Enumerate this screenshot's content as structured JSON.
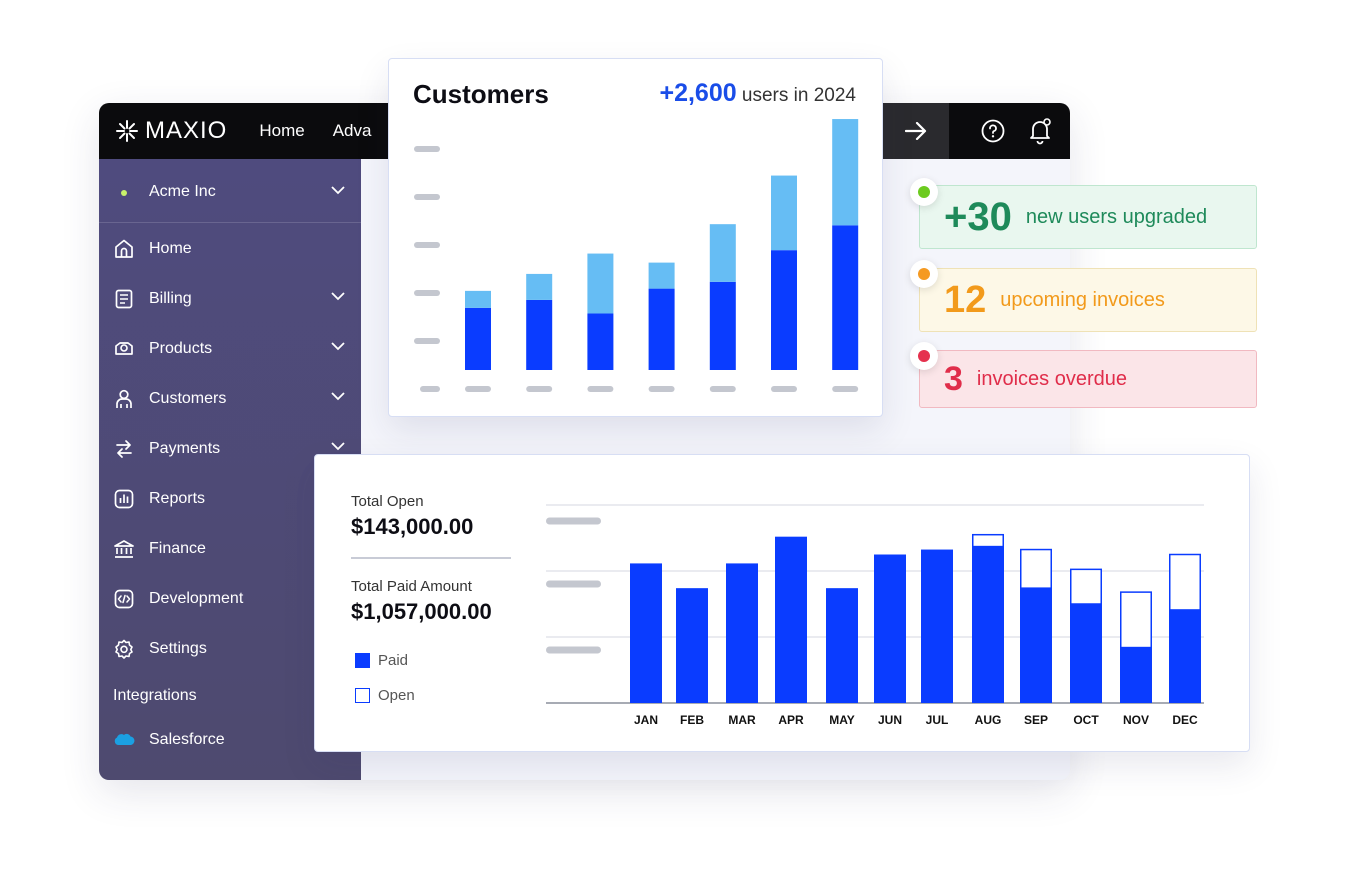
{
  "topbar": {
    "logo_text": "MAXIO",
    "nav": [
      "Home",
      "Adva"
    ],
    "icons": [
      "arrow-right-icon",
      "help-icon",
      "bell-icon"
    ]
  },
  "sidebar": {
    "org": "Acme Inc",
    "items": [
      {
        "label": "Home",
        "icon": "home-icon",
        "has_chevron": false
      },
      {
        "label": "Billing",
        "icon": "billing-icon",
        "has_chevron": true
      },
      {
        "label": "Products",
        "icon": "products-icon",
        "has_chevron": true
      },
      {
        "label": "Customers",
        "icon": "customers-icon",
        "has_chevron": true
      },
      {
        "label": "Payments",
        "icon": "payments-icon",
        "has_chevron": true
      },
      {
        "label": "Reports",
        "icon": "reports-icon",
        "has_chevron": false
      },
      {
        "label": "Finance",
        "icon": "finance-icon",
        "has_chevron": false
      },
      {
        "label": "Development",
        "icon": "development-icon",
        "has_chevron": false
      },
      {
        "label": "Settings",
        "icon": "settings-icon",
        "has_chevron": false
      }
    ],
    "integrations_label": "Integrations",
    "integrations": [
      {
        "label": "Salesforce",
        "icon": "salesforce-icon"
      }
    ]
  },
  "customers_card": {
    "title": "Customers",
    "highlight": "+2,600",
    "suffix": "users in 2024"
  },
  "stats": [
    {
      "value": "+30",
      "text": "new users upgraded",
      "color": "#1e8a5a",
      "bg": "#e9f7ef",
      "border": "#bfe6cf",
      "dot": "#6ccb1f"
    },
    {
      "value": "12",
      "text": "upcoming invoices",
      "color": "#f29a1b",
      "bg": "#fdf8e7",
      "border": "#efe2b6",
      "dot": "#f59a22"
    },
    {
      "value": "3",
      "text": "invoices overdue",
      "color": "#e02d4a",
      "bg": "#fbe5e8",
      "border": "#f1b9c1",
      "dot": "#e5314e"
    }
  ],
  "revenue": {
    "total_open_label": "Total Open",
    "total_open": "$143,000.00",
    "total_paid_label": "Total Paid Amount",
    "total_paid": "$1,057,000.00",
    "legend": [
      {
        "label": "Paid"
      },
      {
        "label": "Open"
      }
    ]
  },
  "colors": {
    "dark_blue": "#0a3cff",
    "light_blue": "#66bdf4",
    "skeleton": "#c4c7cf"
  },
  "chart_data": [
    {
      "type": "bar",
      "stacked": true,
      "categories": [
        "",
        "",
        "",
        "",
        "",
        "",
        ""
      ],
      "series": [
        {
          "values": [
            55,
            62,
            50,
            72,
            78,
            106,
            128
          ]
        },
        {
          "values": [
            15,
            23,
            53,
            23,
            51,
            66,
            94
          ]
        }
      ],
      "ylim": [
        0,
        230
      ]
    },
    {
      "type": "bar",
      "stacked": true,
      "categories": [
        "JAN",
        "FEB",
        "MAR",
        "APR",
        "MAY",
        "JUN",
        "JUL",
        "AUG",
        "SEP",
        "OCT",
        "NOV",
        "DEC"
      ],
      "series": [
        {
          "name": "Paid",
          "values": [
            141,
            116,
            141,
            168,
            116,
            150,
            155,
            158,
            116,
            100,
            56,
            94
          ]
        },
        {
          "name": "Open",
          "values": [
            0,
            0,
            0,
            0,
            0,
            0,
            0,
            12,
            39,
            35,
            56,
            56
          ]
        }
      ],
      "ylim": [
        0,
        200
      ]
    }
  ]
}
